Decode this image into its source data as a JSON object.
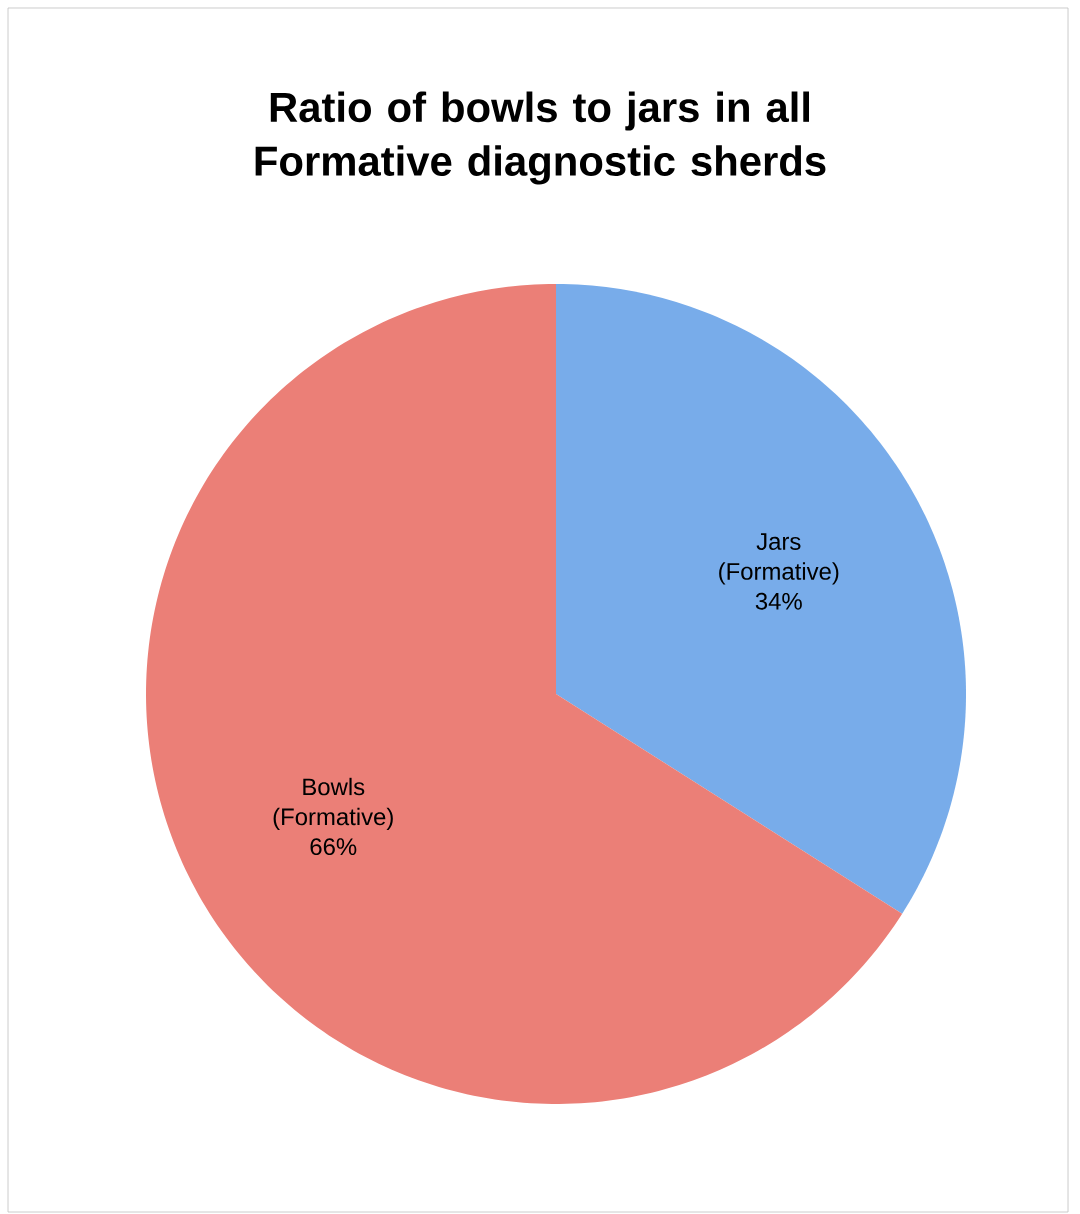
{
  "chart_data": {
    "type": "pie",
    "title": "Ratio of bowls to jars in all Formative diagnostic sherds",
    "categories": [
      "Jars (Formative)",
      "Bowls (Formative)"
    ],
    "values": [
      34,
      66
    ],
    "value_labels": [
      "34%",
      "66%"
    ],
    "colors": [
      "#78acea",
      "#eb7f77"
    ]
  }
}
